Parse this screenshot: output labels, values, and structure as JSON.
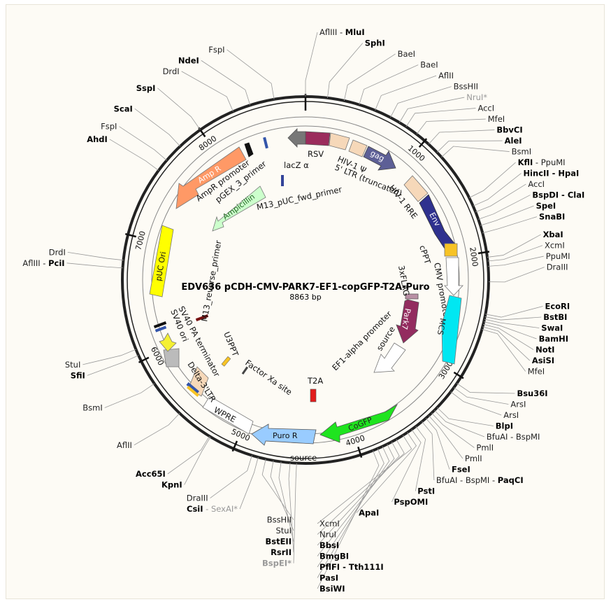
{
  "title": "EDV636  pCDH-CMV-PARK7-EF1-copGFP-T2A-Puro",
  "size": "8863 bp",
  "length": 8863,
  "ticks": [
    "1000",
    "2000",
    "3000",
    "4000",
    "5000",
    "6000",
    "7000",
    "8000"
  ],
  "sites": [
    {
      "label": "AflIII - ",
      "bold": "MluI",
      "pos": 0
    },
    {
      "label": "SphI",
      "bold_all": true,
      "pos": 170
    },
    {
      "label": "BaeI",
      "pos": 300
    },
    {
      "label": "BaeI",
      "pos": 420
    },
    {
      "label": "AflII",
      "pos": 550
    },
    {
      "label": "BssHII",
      "pos": 680
    },
    {
      "label": "NruI*",
      "gray": true,
      "pos": 760
    },
    {
      "label": "AccI",
      "pos": 820
    },
    {
      "label": "MfeI",
      "pos": 920
    },
    {
      "label": "BbvCI",
      "bold_all": true,
      "pos": 1040
    },
    {
      "label": "AleI",
      "bold_all": true,
      "pos": 1130
    },
    {
      "label": "BsmI",
      "pos": 1180
    },
    {
      "label": "KflI - PpuMI",
      "bold_part": "KflI",
      "pos": 1560
    },
    {
      "label": "HincII - HpaI",
      "bold_all": true,
      "pos": 1630
    },
    {
      "label": "AccI",
      "pos": 1680
    },
    {
      "label": "BspDI - ClaI",
      "bold_all": true,
      "pos": 1740
    },
    {
      "label": "SpeI",
      "bold_all": true,
      "pos": 1790
    },
    {
      "label": "SnaBI",
      "bold_all": true,
      "pos": 1850
    },
    {
      "label": "XbaI",
      "bold_all": true,
      "pos": 2040
    },
    {
      "label": "XcmI",
      "pos": 2070
    },
    {
      "label": "PpuMI",
      "pos": 2110
    },
    {
      "label": "DraIII",
      "pos": 2230
    },
    {
      "label": "EcoRI",
      "bold_all": true,
      "pos": 2480
    },
    {
      "label": "BstBI",
      "bold_all": true,
      "pos": 2500
    },
    {
      "label": "SwaI",
      "bold_all": true,
      "pos": 2520
    },
    {
      "label": "BamHI",
      "bold_all": true,
      "pos": 2540
    },
    {
      "label": "NotI",
      "bold_all": true,
      "pos": 2560
    },
    {
      "label": "AsiSI",
      "bold_all": true,
      "pos": 2580
    },
    {
      "label": "MfeI",
      "pos": 2600
    },
    {
      "label": "Bsu36I",
      "bold_all": true,
      "pos": 3060
    },
    {
      "label": "ArsI",
      "pos": 3100
    },
    {
      "label": "ArsI",
      "pos": 3140
    },
    {
      "label": "BlpI",
      "bold_all": true,
      "pos": 3300
    },
    {
      "label": "BfuAI - BspMI",
      "pos": 3330
    },
    {
      "label": "PmlI",
      "pos": 3360
    },
    {
      "label": "PmlI",
      "pos": 3390
    },
    {
      "label": "FseI",
      "bold_all": true,
      "pos": 3420
    },
    {
      "label": "BfuAI - BspMI - PaqCI",
      "bold_part": "PaqCI",
      "pos": 3460
    },
    {
      "label": "PstI",
      "bold_all": true,
      "pos": 3520
    },
    {
      "label": "PspOMI",
      "bold_all": true,
      "pos": 3560
    },
    {
      "label": "ApaI",
      "bold_all": true,
      "pos": 3600
    },
    {
      "label": "XcmI",
      "pos": 3640
    },
    {
      "label": "NruI",
      "pos": 3700
    },
    {
      "label": "BbsI",
      "bold_all": true,
      "pos": 3740
    },
    {
      "label": "BmgBI",
      "bold_all": true,
      "pos": 3780
    },
    {
      "label": "PflFI - Tth111I",
      "bold_all": true,
      "pos": 3820
    },
    {
      "label": "PasI",
      "bold_all": true,
      "pos": 3860
    },
    {
      "label": "BsiWI",
      "bold_all": true,
      "pos": 3900
    },
    {
      "label": "BspEI*",
      "gray": true,
      "bold_all": true,
      "pos": 4500
    },
    {
      "label": "RsrII",
      "bold_all": true,
      "pos": 4550
    },
    {
      "label": "BstEII",
      "bold_all": true,
      "pos": 4620
    },
    {
      "label": "StuI",
      "pos": 4680
    },
    {
      "label": "BssHII",
      "pos": 4740
    },
    {
      "label": "CsiI - SexAI*",
      "bold_part": "CsiI",
      "pos": 4800
    },
    {
      "label": "DraIII",
      "pos": 4850
    },
    {
      "label": "KpnI",
      "bold_all": true,
      "pos": 5200
    },
    {
      "label": "Acc65I",
      "bold_all": true,
      "pos": 5210
    },
    {
      "label": "AflII",
      "pos": 5500
    },
    {
      "label": "BsmI",
      "pos": 5800
    },
    {
      "label": "SfiI",
      "bold_all": true,
      "pos": 6050
    },
    {
      "label": "StuI",
      "pos": 6100
    },
    {
      "label": "AflIII - PciI",
      "bold_part": "PciI",
      "pos": 6740
    },
    {
      "label": "DrdI",
      "pos": 6800
    },
    {
      "label": "AhdI",
      "bold_all": true,
      "pos": 7550
    },
    {
      "label": "FspI",
      "pos": 7650
    },
    {
      "label": "ScaI",
      "bold_all": true,
      "pos": 7800
    },
    {
      "label": "SspI",
      "bold_all": true,
      "pos": 8000
    },
    {
      "label": "DrdI",
      "pos": 8290
    },
    {
      "label": "NdeI",
      "bold_all": true,
      "pos": 8430
    },
    {
      "label": "FspI",
      "pos": 8620
    }
  ],
  "features": [
    {
      "name": "RSV",
      "color": "#9b2c5c"
    },
    {
      "name": "5' LTR (truncated)",
      "color": "#f6d8b9"
    },
    {
      "name": "HIV-1 Ψ",
      "color": "#f6d8b9"
    },
    {
      "name": "gag",
      "color": "#5d5f96"
    },
    {
      "name": "HIV-1 RRE",
      "color": "#f6d8b9"
    },
    {
      "name": "Env",
      "color": "#2f318f"
    },
    {
      "name": "cPPT",
      "color": "#f7c325"
    },
    {
      "name": "CMV promoter",
      "color": "#ffffff"
    },
    {
      "name": "MCS",
      "color": "#00e7f2"
    },
    {
      "name": "3xFLAG",
      "color": "#b98fa5"
    },
    {
      "name": "Park7",
      "color": "#932c5f"
    },
    {
      "name": "EF1-alpha promoter",
      "color": "#ffffff"
    },
    {
      "name": "source",
      "color": "#ffffff"
    },
    {
      "name": "CoGFP",
      "color": "#1fe41f"
    },
    {
      "name": "T2A",
      "color": "#e21c1c"
    },
    {
      "name": "Puro R",
      "color": "#99ccff"
    },
    {
      "name": "source",
      "color": "#ffffff"
    },
    {
      "name": "WPRE",
      "color": "#ffffff"
    },
    {
      "name": "Delta-3'LTR",
      "color": "#f6d8b9"
    },
    {
      "name": "SV40 PA terminator",
      "color": "#bbbbbb"
    },
    {
      "name": "SV40 ori",
      "color": "#f4f032"
    },
    {
      "name": "U3PPT",
      "color": "#f7c325"
    },
    {
      "name": "Factor Xa site",
      "color": "#444444"
    },
    {
      "name": "M13_reverse_primer",
      "color": "#771111"
    },
    {
      "name": "pUC Ori",
      "color": "#ffff00"
    },
    {
      "name": "Ampicillin",
      "color": "#ccffcc"
    },
    {
      "name": "M13_pUC_fwd_primer",
      "color": "#334499"
    },
    {
      "name": "Amp R",
      "color": "#ff9966"
    },
    {
      "name": "AmpR promoter",
      "color": "#111111"
    },
    {
      "name": "pGEX_3_primer",
      "color": "#3355aa"
    },
    {
      "name": "lacZ α",
      "color": "#777777"
    }
  ]
}
